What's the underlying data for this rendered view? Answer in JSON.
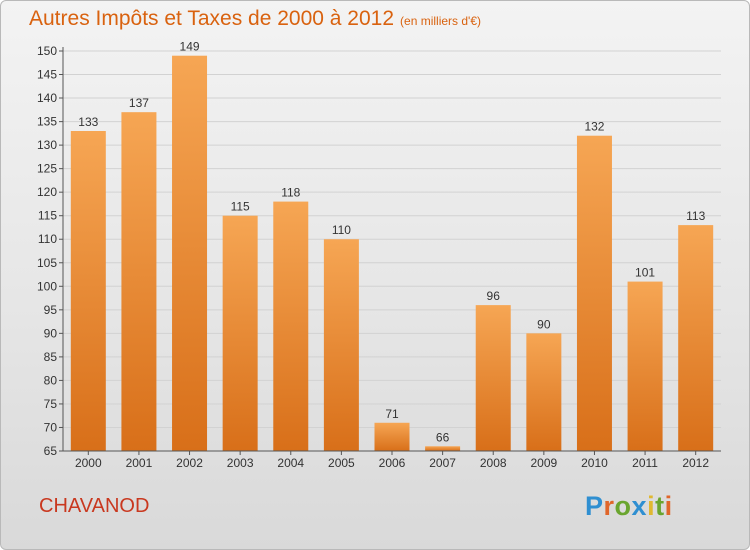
{
  "title": "Autres Impôts et Taxes de 2000 à 2012",
  "subtitle": "(en milliers d'€)",
  "commune": "CHAVANOD",
  "logo": {
    "text": "Proxiti",
    "letter_colors": [
      "#2f8fd1",
      "#e0662a",
      "#6aa52f",
      "#2f8fd1",
      "#e0b830",
      "#6aa52f",
      "#e0662a"
    ]
  },
  "colors": {
    "bar_light": "#f6a654",
    "bar_dark": "#d86f19",
    "title": "#d9620f",
    "commune": "#c9381f"
  },
  "chart_data": {
    "type": "bar",
    "title": "Autres Impôts et Taxes de 2000 à 2012",
    "categories": [
      "2000",
      "2001",
      "2002",
      "2003",
      "2004",
      "2005",
      "2006",
      "2007",
      "2008",
      "2009",
      "2010",
      "2011",
      "2012"
    ],
    "values": [
      133,
      137,
      149,
      115,
      118,
      110,
      71,
      66,
      96,
      90,
      132,
      101,
      113
    ],
    "ylim": [
      65,
      150
    ],
    "yticks": [
      65,
      70,
      75,
      80,
      85,
      90,
      95,
      100,
      105,
      110,
      115,
      120,
      125,
      130,
      135,
      140,
      145,
      150
    ],
    "grid": true,
    "legend": "none"
  }
}
